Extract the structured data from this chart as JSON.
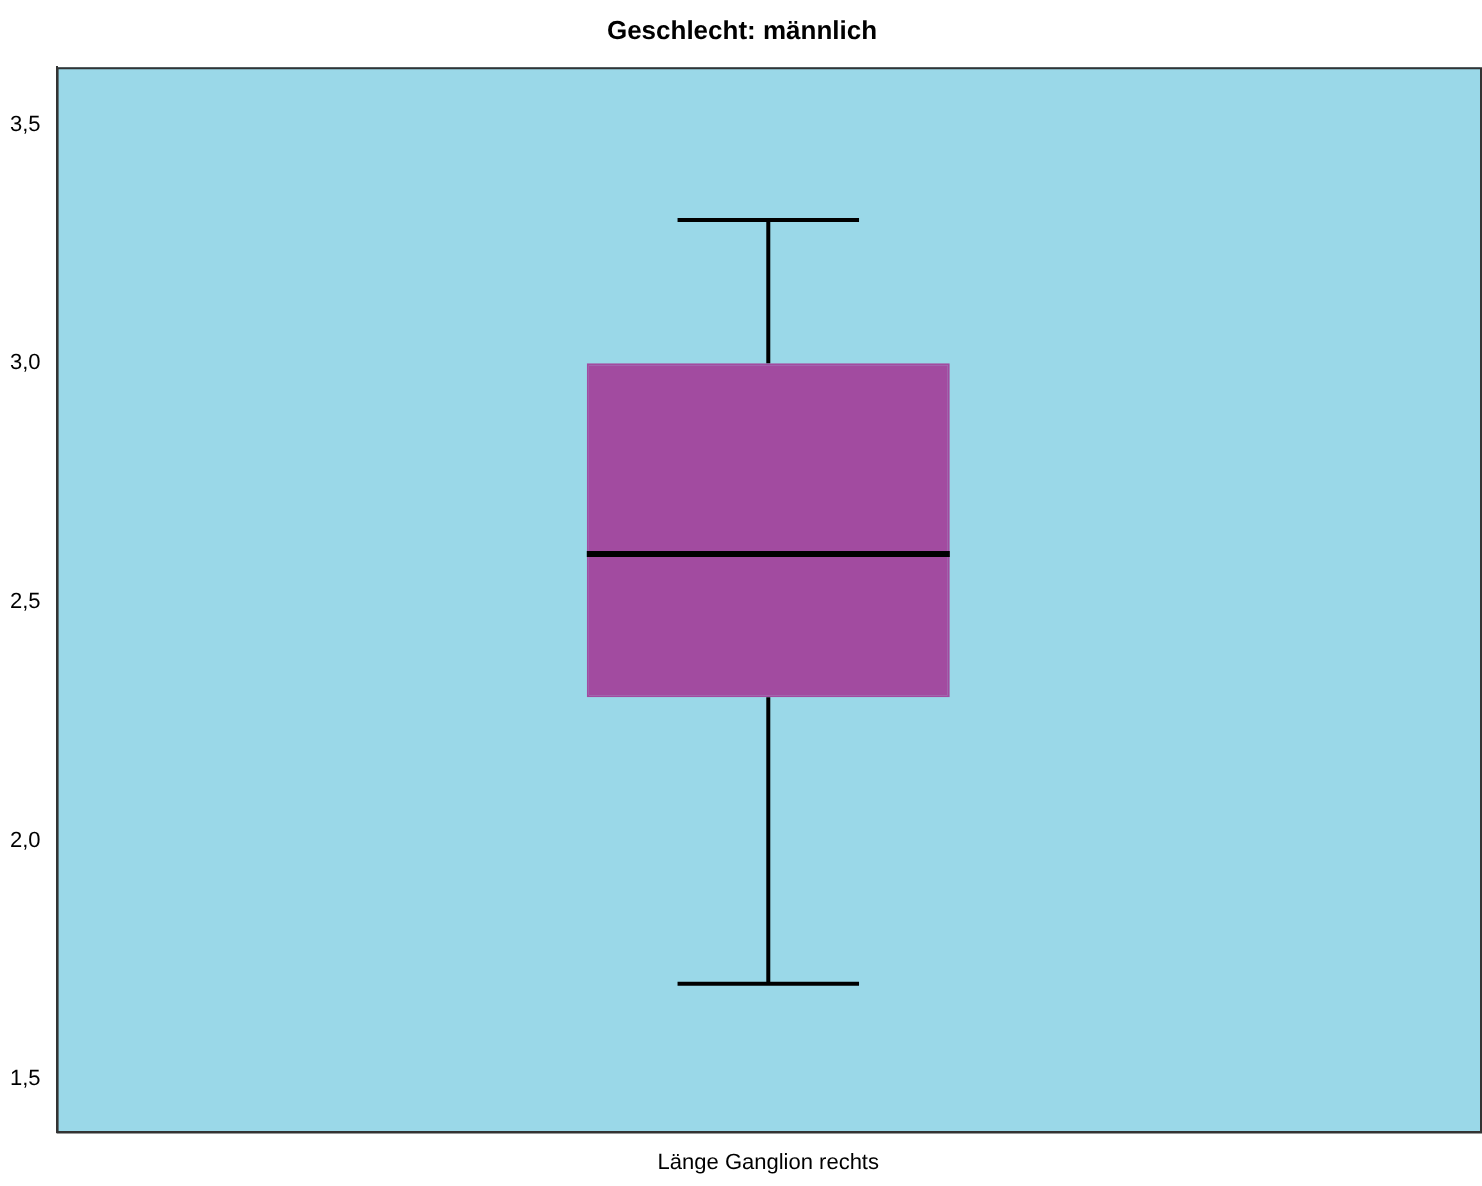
{
  "chart_data": {
    "type": "box",
    "title": "Geschlecht: männlich",
    "categories": [
      "Länge Ganglion rechts"
    ],
    "color": "#a24ba0",
    "boxes": [
      {
        "low": 1.7,
        "q1": 2.3,
        "median": 2.6,
        "q3": 3.0,
        "high": 3.3
      }
    ],
    "ylim": [
      1.39,
      3.62
    ],
    "yticks": [
      {
        "value": 1.5,
        "label": "1,5"
      },
      {
        "value": 2.0,
        "label": "2,0"
      },
      {
        "value": 2.5,
        "label": "2,5"
      },
      {
        "value": 3.0,
        "label": "3,0"
      },
      {
        "value": 3.5,
        "label": "3,5"
      }
    ],
    "grid": false,
    "legend": false
  }
}
